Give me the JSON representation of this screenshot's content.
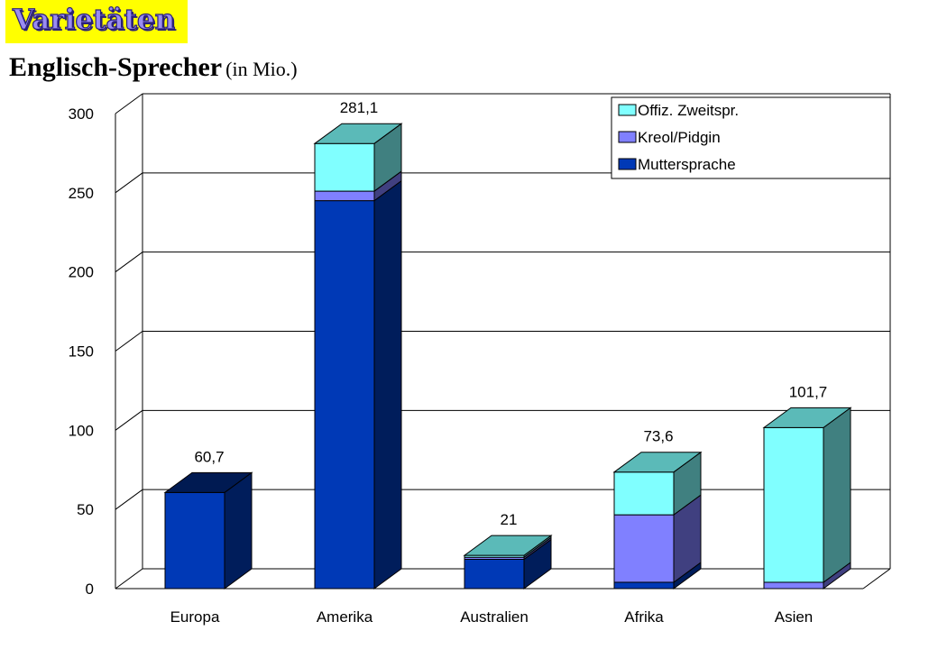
{
  "slide": {
    "title": "Varietäten",
    "title_background": "#ffff00"
  },
  "chart_data": {
    "type": "bar",
    "stacked": true,
    "three_d": true,
    "title": "Englisch-Sprecher",
    "subtitle": "(in Mio.)",
    "categories": [
      "Europa",
      "Amerika",
      "Australien",
      "Afrika",
      "Asien"
    ],
    "series": [
      {
        "name": "Muttersprache",
        "color": "#0039b6",
        "values": [
          60.7,
          245,
          18.5,
          4,
          0
        ]
      },
      {
        "name": "Kreol/Pidgin",
        "color": "#8080ff",
        "values": [
          0,
          6,
          1.3,
          42.6,
          4
        ]
      },
      {
        "name": "Offiz. Zweitspr.",
        "color": "#80ffff",
        "values": [
          0,
          30.1,
          1.2,
          27,
          97.7
        ]
      }
    ],
    "totals": [
      "60,7",
      "281,1",
      "21",
      "73,6",
      "101,7"
    ],
    "y_ticks": [
      "0",
      "50",
      "100",
      "150",
      "200",
      "250",
      "300"
    ],
    "ylim": [
      0,
      300
    ],
    "grid": true,
    "legend": {
      "position": "top-right",
      "order": [
        "Offiz. Zweitspr.",
        "Kreol/Pidgin",
        "Muttersprache"
      ]
    }
  }
}
